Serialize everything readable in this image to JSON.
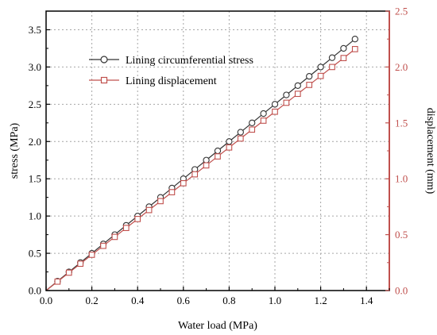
{
  "chart_data": {
    "type": "line",
    "xlabel": "Water load  (MPa)",
    "ylabel_left": "stress (MPa)",
    "ylabel_right": "displacement  (mm)",
    "xlim": [
      0,
      1.5
    ],
    "ylim_left": [
      0,
      3.75
    ],
    "ylim_right": [
      0,
      2.5
    ],
    "x_ticks": [
      "0.0",
      "0.2",
      "0.4",
      "0.6",
      "0.8",
      "1.0",
      "1.2",
      "1.4"
    ],
    "y_left_ticks": [
      "0.0",
      "0.5",
      "1.0",
      "1.5",
      "2.0",
      "2.5",
      "3.0",
      "3.5"
    ],
    "y_right_ticks": [
      "0.0",
      "0.5",
      "1.0",
      "1.5",
      "2.0",
      "2.5"
    ],
    "grid": true,
    "legend_position": "upper-left",
    "x": [
      0.0,
      0.05,
      0.1,
      0.15,
      0.2,
      0.25,
      0.3,
      0.35,
      0.4,
      0.45,
      0.5,
      0.55,
      0.6,
      0.65,
      0.7,
      0.75,
      0.8,
      0.85,
      0.9,
      0.95,
      1.0,
      1.05,
      1.1,
      1.15,
      1.2,
      1.25,
      1.3,
      1.35
    ],
    "series": [
      {
        "name": "Lining circumferential stress",
        "axis": "left",
        "color": "#333333",
        "marker": "circle",
        "values": [
          0.0,
          0.125,
          0.25,
          0.375,
          0.5,
          0.625,
          0.75,
          0.875,
          1.0,
          1.125,
          1.25,
          1.375,
          1.5,
          1.625,
          1.75,
          1.875,
          2.0,
          2.125,
          2.25,
          2.375,
          2.5,
          2.625,
          2.75,
          2.875,
          3.0,
          3.125,
          3.25,
          3.375
        ]
      },
      {
        "name": "Lining displacement",
        "axis": "right",
        "color": "#c0504d",
        "marker": "square",
        "values": [
          0.0,
          0.08,
          0.16,
          0.24,
          0.32,
          0.4,
          0.48,
          0.56,
          0.64,
          0.72,
          0.8,
          0.88,
          0.96,
          1.04,
          1.12,
          1.2,
          1.28,
          1.36,
          1.44,
          1.52,
          1.6,
          1.68,
          1.76,
          1.84,
          1.92,
          2.0,
          2.08,
          2.16
        ]
      }
    ]
  }
}
